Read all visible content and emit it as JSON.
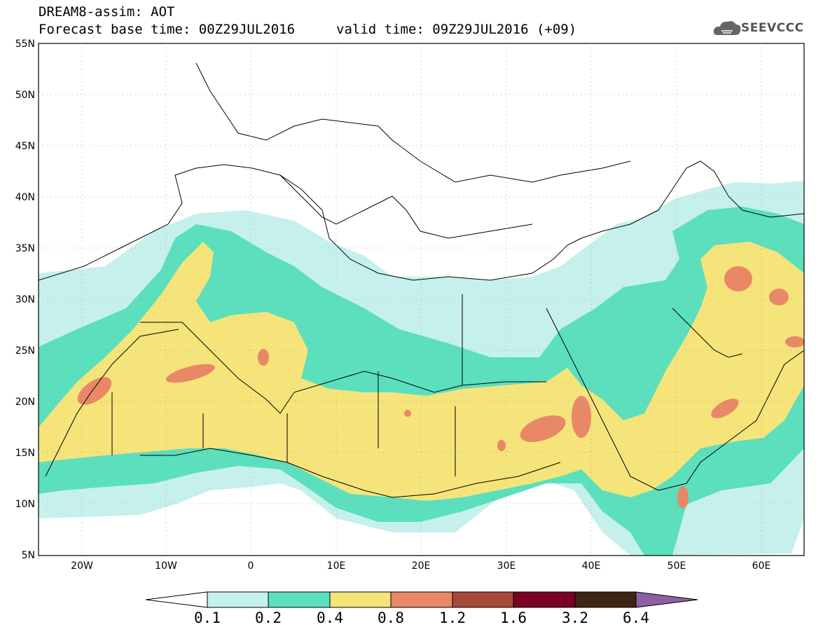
{
  "header": {
    "title": "DREAM8-assim: AOT",
    "base_time": "Forecast base time: 00Z29JUL2016",
    "valid_time": "valid time: 09Z29JUL2016 (+09)",
    "logo_text": "SEEVCCC",
    "logo_icon": "cloud-icon"
  },
  "map": {
    "lat_labels": [
      "55N",
      "50N",
      "45N",
      "40N",
      "35N",
      "30N",
      "25N",
      "20N",
      "15N",
      "10N",
      "5N"
    ],
    "lon_labels": [
      "20W",
      "10W",
      "0",
      "10E",
      "20E",
      "30E",
      "40E",
      "50E",
      "60E"
    ]
  },
  "colorbar": {
    "levels": [
      "0.1",
      "0.2",
      "0.4",
      "0.8",
      "1.2",
      "1.6",
      "3.2",
      "6.4"
    ],
    "colors": [
      "#c6f0ec",
      "#5bdfbd",
      "#f5e47a",
      "#e88866",
      "#a8483a",
      "#7a0024",
      "#3e2412",
      "#8f5fa5"
    ]
  }
}
